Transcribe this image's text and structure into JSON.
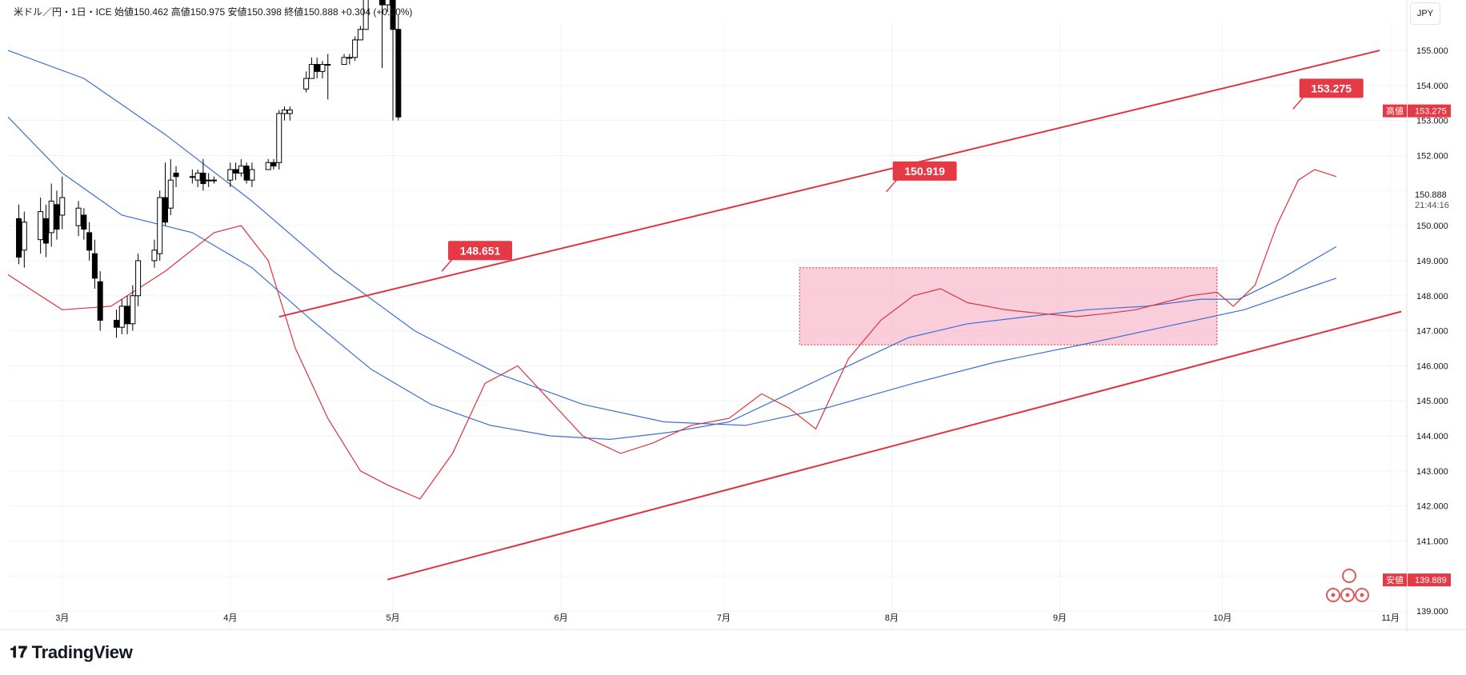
{
  "header": {
    "symbol": "米ドル／円・1日・ICE",
    "open_label": "始値",
    "open": "150.462",
    "high_label": "高値",
    "high": "150.975",
    "low_label": "安値",
    "low": "150.398",
    "close_label": "終値",
    "close": "150.888",
    "change": "+0.304 (+0.20%)"
  },
  "currency_button": "JPY",
  "brand": {
    "name": "TradingView"
  },
  "colors": {
    "up_candle": "#ffffff",
    "down_candle": "#000000",
    "candle_outline": "#000000",
    "channel": "#e0323c",
    "label_bg": "#e53945",
    "ma_short": "#e0323c",
    "ma_long": "#3d6fd4",
    "range_box": "#f7b8cb",
    "axis_text": "#131722"
  },
  "chart_data": {
    "type": "candlestick",
    "y_axis": {
      "ticks": [
        "155.000",
        "154.000",
        "153.000",
        "152.000",
        "151.000",
        "150.000",
        "149.000",
        "148.000",
        "147.000",
        "146.000",
        "145.000",
        "144.000",
        "143.000",
        "142.000",
        "141.000",
        "140.000",
        "139.000"
      ],
      "range": [
        138.5,
        155.8
      ],
      "current_price": "150.888",
      "countdown": "21:44:16",
      "high_label": "高値",
      "high_value": "153.275",
      "low_label": "安値",
      "low_value": "139.889"
    },
    "x_axis": {
      "ticks": [
        {
          "label": "3月",
          "date": "2024-03-01"
        },
        {
          "label": "4月",
          "date": "2024-04-01"
        },
        {
          "label": "5月",
          "date": "2024-05-01"
        },
        {
          "label": "6月",
          "date": "2024-06-01"
        },
        {
          "label": "7月",
          "date": "2024-07-01"
        },
        {
          "label": "8月",
          "date": "2024-08-01"
        },
        {
          "label": "9月",
          "date": "2024-09-01"
        },
        {
          "label": "10月",
          "date": "2024-10-01"
        },
        {
          "label": "11月",
          "date": "2024-11-01"
        }
      ],
      "range": [
        "2024-02-20",
        "2024-11-04"
      ]
    },
    "peak_annotations": [
      {
        "label": "148.651",
        "date": "2024-05-10",
        "value": 148.65
      },
      {
        "label": "150.919",
        "date": "2024-07-31",
        "value": 150.92
      },
      {
        "label": "153.275",
        "date": "2024-10-14",
        "value": 153.28
      }
    ],
    "channel_lines": [
      {
        "from": {
          "date": "2024-04-10",
          "value": 147.4
        },
        "to": {
          "date": "2024-10-30",
          "value": 155.0
        }
      },
      {
        "from": {
          "date": "2024-04-30",
          "value": 139.9
        },
        "to": {
          "date": "2024-11-03",
          "value": 147.55
        }
      }
    ],
    "range_box": {
      "from_date": "2024-07-15",
      "to_date": "2024-09-30",
      "top": 148.8,
      "bottom": 146.6
    },
    "ma_short": [
      [
        "2024-02-20",
        148.6
      ],
      [
        "2024-03-01",
        147.6
      ],
      [
        "2024-03-10",
        147.7
      ],
      [
        "2024-03-20",
        148.7
      ],
      [
        "2024-03-29",
        149.8
      ],
      [
        "2024-04-03",
        150.0
      ],
      [
        "2024-04-08",
        149.0
      ],
      [
        "2024-04-13",
        146.5
      ],
      [
        "2024-04-19",
        144.5
      ],
      [
        "2024-04-25",
        143.0
      ],
      [
        "2024-04-30",
        142.6
      ],
      [
        "2024-05-06",
        142.2
      ],
      [
        "2024-05-12",
        143.5
      ],
      [
        "2024-05-18",
        145.5
      ],
      [
        "2024-05-24",
        146.0
      ],
      [
        "2024-05-30",
        145.0
      ],
      [
        "2024-06-05",
        144.0
      ],
      [
        "2024-06-12",
        143.5
      ],
      [
        "2024-06-18",
        143.8
      ],
      [
        "2024-06-25",
        144.3
      ],
      [
        "2024-07-02",
        144.5
      ],
      [
        "2024-07-08",
        145.2
      ],
      [
        "2024-07-13",
        144.8
      ],
      [
        "2024-07-18",
        144.2
      ],
      [
        "2024-07-24",
        146.2
      ],
      [
        "2024-07-30",
        147.3
      ],
      [
        "2024-08-05",
        148.0
      ],
      [
        "2024-08-10",
        148.2
      ],
      [
        "2024-08-15",
        147.8
      ],
      [
        "2024-08-22",
        147.6
      ],
      [
        "2024-08-28",
        147.5
      ],
      [
        "2024-09-04",
        147.4
      ],
      [
        "2024-09-10",
        147.5
      ],
      [
        "2024-09-15",
        147.6
      ],
      [
        "2024-09-20",
        147.8
      ],
      [
        "2024-09-25",
        148.0
      ],
      [
        "2024-09-30",
        148.1
      ],
      [
        "2024-10-03",
        147.7
      ],
      [
        "2024-10-07",
        148.3
      ],
      [
        "2024-10-11",
        150.0
      ],
      [
        "2024-10-15",
        151.3
      ],
      [
        "2024-10-18",
        151.6
      ],
      [
        "2024-10-22",
        151.4
      ]
    ],
    "ma_long": [
      [
        "2024-02-20",
        153.1
      ],
      [
        "2024-03-01",
        151.5
      ],
      [
        "2024-03-12",
        150.3
      ],
      [
        "2024-03-25",
        149.8
      ],
      [
        "2024-04-05",
        148.8
      ],
      [
        "2024-04-16",
        147.3
      ],
      [
        "2024-04-27",
        145.9
      ],
      [
        "2024-05-08",
        144.9
      ],
      [
        "2024-05-19",
        144.3
      ],
      [
        "2024-05-30",
        144.0
      ],
      [
        "2024-06-10",
        143.9
      ],
      [
        "2024-06-21",
        144.1
      ],
      [
        "2024-07-02",
        144.4
      ],
      [
        "2024-07-13",
        145.2
      ],
      [
        "2024-07-24",
        146.0
      ],
      [
        "2024-08-04",
        146.8
      ],
      [
        "2024-08-15",
        147.2
      ],
      [
        "2024-08-26",
        147.4
      ],
      [
        "2024-09-06",
        147.6
      ],
      [
        "2024-09-17",
        147.7
      ],
      [
        "2024-09-27",
        147.9
      ],
      [
        "2024-10-04",
        147.9
      ],
      [
        "2024-10-12",
        148.5
      ],
      [
        "2024-10-22",
        149.4
      ]
    ],
    "ma_long2": [
      [
        "2024-02-20",
        155.0
      ],
      [
        "2024-03-05",
        154.2
      ],
      [
        "2024-03-20",
        152.6
      ],
      [
        "2024-04-05",
        150.7
      ],
      [
        "2024-04-20",
        148.7
      ],
      [
        "2024-05-05",
        147.0
      ],
      [
        "2024-05-20",
        145.8
      ],
      [
        "2024-06-05",
        144.9
      ],
      [
        "2024-06-20",
        144.4
      ],
      [
        "2024-07-05",
        144.3
      ],
      [
        "2024-07-20",
        144.8
      ],
      [
        "2024-08-05",
        145.5
      ],
      [
        "2024-08-20",
        146.1
      ],
      [
        "2024-09-05",
        146.6
      ],
      [
        "2024-09-20",
        147.1
      ],
      [
        "2024-10-05",
        147.6
      ],
      [
        "2024-10-22",
        148.5
      ]
    ],
    "candles": [
      [
        "2024-02-22",
        150.2,
        149.1,
        150.6,
        148.9
      ],
      [
        "2024-02-23",
        149.3,
        150.1,
        150.4,
        148.8
      ],
      [
        "2024-02-26",
        149.6,
        150.4,
        150.8,
        149.2
      ],
      [
        "2024-02-27",
        150.2,
        149.5,
        150.6,
        149.1
      ],
      [
        "2024-02-28",
        149.8,
        150.7,
        151.2,
        149.4
      ],
      [
        "2024-02-29",
        150.6,
        149.9,
        151.0,
        149.6
      ],
      [
        "2024-03-01",
        150.3,
        150.8,
        151.4,
        149.9
      ],
      [
        "2024-03-04",
        150.0,
        150.5,
        150.7,
        149.7
      ],
      [
        "2024-03-05",
        150.3,
        149.9,
        150.5,
        149.6
      ],
      [
        "2024-03-06",
        149.8,
        149.3,
        150.1,
        149.0
      ],
      [
        "2024-03-07",
        149.2,
        148.5,
        149.6,
        148.2
      ],
      [
        "2024-03-08",
        148.4,
        147.3,
        148.7,
        147.0
      ],
      [
        "2024-03-11",
        147.3,
        147.1,
        147.6,
        146.8
      ],
      [
        "2024-03-12",
        147.1,
        147.7,
        147.9,
        146.9
      ],
      [
        "2024-03-13",
        147.7,
        147.2,
        148.0,
        146.9
      ],
      [
        "2024-03-14",
        147.2,
        148.0,
        148.3,
        147.0
      ],
      [
        "2024-03-15",
        148.0,
        149.0,
        149.2,
        147.7
      ],
      [
        "2024-03-18",
        149.0,
        149.3,
        149.6,
        148.8
      ],
      [
        "2024-03-19",
        149.2,
        150.8,
        151.0,
        149.0
      ],
      [
        "2024-03-20",
        150.8,
        150.1,
        151.8,
        150.0
      ],
      [
        "2024-03-21",
        150.5,
        151.3,
        151.9,
        150.3
      ],
      [
        "2024-03-22",
        151.5,
        151.4,
        151.7,
        151.1
      ],
      [
        "2024-03-25",
        151.4,
        151.4,
        151.6,
        151.2
      ],
      [
        "2024-03-26",
        151.3,
        151.5,
        151.6,
        151.1
      ],
      [
        "2024-03-27",
        151.5,
        151.2,
        151.9,
        151.0
      ],
      [
        "2024-03-28",
        151.3,
        151.3,
        151.5,
        151.1
      ],
      [
        "2024-03-29",
        151.3,
        151.3,
        151.4,
        151.2
      ],
      [
        "2024-04-01",
        151.3,
        151.6,
        151.8,
        151.1
      ],
      [
        "2024-04-02",
        151.6,
        151.5,
        151.8,
        151.3
      ],
      [
        "2024-04-03",
        151.5,
        151.7,
        151.9,
        151.4
      ],
      [
        "2024-04-04",
        151.7,
        151.3,
        151.8,
        151.2
      ],
      [
        "2024-04-05",
        151.3,
        151.6,
        151.8,
        151.1
      ],
      [
        "2024-04-08",
        151.6,
        151.8,
        151.9,
        151.6
      ],
      [
        "2024-04-09",
        151.8,
        151.7,
        151.9,
        151.6
      ],
      [
        "2024-04-10",
        151.8,
        153.2,
        153.3,
        151.6
      ],
      [
        "2024-04-11",
        153.2,
        153.3,
        153.4,
        153.0
      ],
      [
        "2024-04-12",
        153.2,
        153.3,
        153.4,
        153.0
      ],
      [
        "2024-04-15",
        153.9,
        154.2,
        154.4,
        153.8
      ],
      [
        "2024-04-16",
        154.2,
        154.6,
        154.8,
        154.2
      ],
      [
        "2024-04-17",
        154.6,
        154.4,
        154.8,
        154.2
      ],
      [
        "2024-04-18",
        154.4,
        154.6,
        154.7,
        154.2
      ],
      [
        "2024-04-19",
        154.6,
        154.6,
        154.9,
        153.6
      ],
      [
        "2024-04-22",
        154.6,
        154.8,
        154.9,
        154.6
      ],
      [
        "2024-04-23",
        154.8,
        154.8,
        154.9,
        154.6
      ],
      [
        "2024-04-24",
        154.8,
        155.3,
        155.4,
        154.7
      ],
      [
        "2024-04-25",
        155.3,
        155.6,
        155.7,
        155.3
      ],
      [
        "2024-04-26",
        155.6,
        158.3,
        158.4,
        155.6
      ],
      [
        "2024-04-29",
        158.3,
        156.3,
        160.2,
        154.5
      ],
      [
        "2024-04-30",
        156.3,
        157.8,
        157.9,
        156.1
      ],
      [
        "2024-05-01",
        157.8,
        155.6,
        157.9,
        153.0
      ],
      [
        "2024-05-02",
        155.6,
        153.1,
        156.0,
        153.0
      ]
    ]
  }
}
